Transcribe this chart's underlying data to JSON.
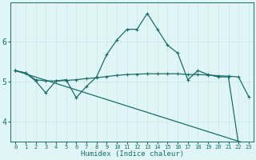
{
  "xlabel": "Humidex (Indice chaleur)",
  "background_color": "#e0f5f5",
  "grid_color": "#c8e8e8",
  "line_color": "#1a6e6a",
  "xlim": [
    -0.5,
    23.5
  ],
  "ylim": [
    3.5,
    7.0
  ],
  "yticks": [
    4,
    5,
    6
  ],
  "xticks": [
    0,
    1,
    2,
    3,
    4,
    5,
    6,
    7,
    8,
    9,
    10,
    11,
    12,
    13,
    14,
    15,
    16,
    17,
    18,
    19,
    20,
    21,
    22,
    23
  ],
  "series": [
    {
      "x": [
        0,
        1,
        2,
        3,
        4,
        5,
        6,
        7,
        8,
        9,
        10,
        11,
        12,
        13,
        14,
        15,
        16,
        17,
        18,
        19,
        20,
        21,
        22,
        23
      ],
      "y": [
        5.28,
        5.22,
        5.05,
        5.02,
        5.02,
        5.03,
        5.05,
        5.08,
        5.1,
        5.13,
        5.16,
        5.18,
        5.19,
        5.2,
        5.2,
        5.2,
        5.2,
        5.18,
        5.18,
        5.17,
        5.15,
        5.14,
        5.12,
        4.62
      ]
    },
    {
      "x": [
        0,
        1,
        2,
        3,
        4,
        5,
        6,
        7,
        8,
        9,
        10,
        11,
        12,
        13,
        14,
        15,
        16,
        17,
        18,
        19,
        20,
        21,
        22
      ],
      "y": [
        5.28,
        5.22,
        5.02,
        4.72,
        5.02,
        5.05,
        4.6,
        4.88,
        5.12,
        5.68,
        6.05,
        6.32,
        6.32,
        6.72,
        6.32,
        5.92,
        5.72,
        5.05,
        5.28,
        5.18,
        5.12,
        5.12,
        3.42
      ]
    },
    {
      "x": [
        0,
        23
      ],
      "y": [
        5.28,
        3.42
      ]
    }
  ]
}
